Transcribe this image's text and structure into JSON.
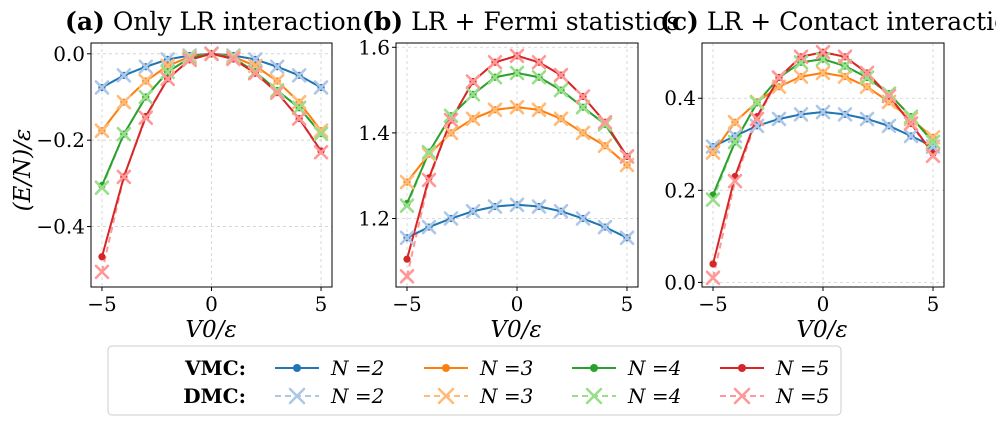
{
  "chart_data": [
    {
      "type": "line",
      "title_tag": "(a)",
      "title": "Only LR interaction",
      "xlabel": "V0/ε",
      "ylabel": "(E/N)/ε",
      "xlim": [
        -5.5,
        5.5
      ],
      "ylim": [
        -0.54,
        0.025
      ],
      "xticks": [
        -5,
        0,
        5
      ],
      "xtick_labels": [
        "−5",
        "0",
        "5"
      ],
      "yticks": [
        0.0,
        -0.2,
        -0.4
      ],
      "ytick_labels": [
        "0.0",
        "−0.2",
        "−0.4"
      ],
      "x": [
        -5,
        -4,
        -3,
        -2,
        -1,
        0,
        1,
        2,
        3,
        4,
        5
      ],
      "vmc": [
        {
          "name": "N =2",
          "values": [
            -0.078,
            -0.05,
            -0.03,
            -0.013,
            -0.004,
            0.0,
            -0.004,
            -0.013,
            -0.03,
            -0.05,
            -0.078
          ]
        },
        {
          "name": "N =3",
          "values": [
            -0.178,
            -0.112,
            -0.063,
            -0.028,
            -0.007,
            0.0,
            -0.007,
            -0.028,
            -0.063,
            -0.112,
            -0.178
          ]
        },
        {
          "name": "N =4",
          "values": [
            -0.305,
            -0.186,
            -0.1,
            -0.042,
            -0.01,
            0.0,
            -0.01,
            -0.042,
            -0.085,
            -0.125,
            -0.185
          ]
        },
        {
          "name": "N =5",
          "values": [
            -0.47,
            -0.285,
            -0.145,
            -0.058,
            -0.014,
            0.0,
            -0.012,
            -0.045,
            -0.09,
            -0.15,
            -0.225
          ]
        }
      ],
      "dmc": [
        {
          "name": "N =2",
          "values": [
            -0.078,
            -0.05,
            -0.03,
            -0.013,
            -0.004,
            0.0,
            -0.004,
            -0.013,
            -0.03,
            -0.05,
            -0.078
          ]
        },
        {
          "name": "N =3",
          "values": [
            -0.178,
            -0.112,
            -0.063,
            -0.028,
            -0.007,
            0.0,
            -0.007,
            -0.028,
            -0.063,
            -0.112,
            -0.178
          ]
        },
        {
          "name": "N =4",
          "values": [
            -0.31,
            -0.186,
            -0.1,
            -0.042,
            -0.01,
            0.0,
            -0.01,
            -0.042,
            -0.085,
            -0.125,
            -0.185
          ]
        },
        {
          "name": "N =5",
          "values": [
            -0.505,
            -0.285,
            -0.148,
            -0.058,
            -0.014,
            0.0,
            -0.012,
            -0.045,
            -0.09,
            -0.15,
            -0.228
          ]
        }
      ]
    },
    {
      "type": "line",
      "title_tag": "(b)",
      "title": "LR + Fermi statistics",
      "xlabel": "V0/ε",
      "ylabel": "",
      "xlim": [
        -5.5,
        5.5
      ],
      "ylim": [
        1.04,
        1.61
      ],
      "xticks": [
        -5,
        0,
        5
      ],
      "xtick_labels": [
        "−5",
        "0",
        "5"
      ],
      "yticks": [
        1.2,
        1.4,
        1.6
      ],
      "ytick_labels": [
        "1.2",
        "1.4",
        "1.6"
      ],
      "x": [
        -5,
        -4,
        -3,
        -2,
        -1,
        0,
        1,
        2,
        3,
        4,
        5
      ],
      "vmc": [
        {
          "name": "N =2",
          "values": [
            1.155,
            1.18,
            1.2,
            1.217,
            1.228,
            1.232,
            1.228,
            1.217,
            1.2,
            1.18,
            1.155
          ]
        },
        {
          "name": "N =3",
          "values": [
            1.285,
            1.35,
            1.4,
            1.433,
            1.454,
            1.46,
            1.454,
            1.433,
            1.4,
            1.37,
            1.325
          ]
        },
        {
          "name": "N =4",
          "values": [
            1.235,
            1.355,
            1.44,
            1.49,
            1.53,
            1.54,
            1.53,
            1.5,
            1.46,
            1.42,
            1.345
          ]
        },
        {
          "name": "N =5",
          "values": [
            1.105,
            1.295,
            1.43,
            1.52,
            1.565,
            1.58,
            1.565,
            1.535,
            1.485,
            1.425,
            1.345
          ]
        }
      ],
      "dmc": [
        {
          "name": "N =2",
          "values": [
            1.155,
            1.18,
            1.2,
            1.217,
            1.228,
            1.232,
            1.228,
            1.217,
            1.2,
            1.18,
            1.155
          ]
        },
        {
          "name": "N =3",
          "values": [
            1.285,
            1.35,
            1.4,
            1.433,
            1.454,
            1.46,
            1.454,
            1.433,
            1.4,
            1.37,
            1.325
          ]
        },
        {
          "name": "N =4",
          "values": [
            1.23,
            1.355,
            1.44,
            1.49,
            1.53,
            1.54,
            1.53,
            1.5,
            1.46,
            1.42,
            1.345
          ]
        },
        {
          "name": "N =5",
          "values": [
            1.065,
            1.29,
            1.43,
            1.52,
            1.565,
            1.58,
            1.565,
            1.535,
            1.485,
            1.425,
            1.345
          ]
        }
      ]
    },
    {
      "type": "line",
      "title_tag": "(c)",
      "title": "LR + Contact interaction",
      "xlabel": "V0/ε",
      "ylabel": "",
      "xlim": [
        -5.5,
        5.5
      ],
      "ylim": [
        -0.01,
        0.52
      ],
      "xticks": [
        -5,
        0,
        5
      ],
      "xtick_labels": [
        "−5",
        "0",
        "5"
      ],
      "yticks": [
        0.0,
        0.2,
        0.4
      ],
      "ytick_labels": [
        "0.0",
        "0.2",
        "0.4"
      ],
      "x": [
        -5,
        -4,
        -3,
        -2,
        -1,
        0,
        1,
        2,
        3,
        4,
        5
      ],
      "vmc": [
        {
          "name": "N =2",
          "values": [
            0.295,
            0.318,
            0.34,
            0.355,
            0.365,
            0.37,
            0.365,
            0.355,
            0.34,
            0.318,
            0.295
          ]
        },
        {
          "name": "N =3",
          "values": [
            0.282,
            0.348,
            0.392,
            0.425,
            0.447,
            0.455,
            0.447,
            0.425,
            0.392,
            0.355,
            0.315
          ]
        },
        {
          "name": "N =4",
          "values": [
            0.19,
            0.305,
            0.39,
            0.445,
            0.478,
            0.485,
            0.47,
            0.445,
            0.41,
            0.36,
            0.305
          ]
        },
        {
          "name": "N =5",
          "values": [
            0.04,
            0.23,
            0.36,
            0.445,
            0.49,
            0.5,
            0.49,
            0.455,
            0.405,
            0.345,
            0.28
          ]
        }
      ],
      "dmc": [
        {
          "name": "N =2",
          "values": [
            0.295,
            0.318,
            0.34,
            0.355,
            0.365,
            0.37,
            0.365,
            0.355,
            0.34,
            0.318,
            0.295
          ]
        },
        {
          "name": "N =3",
          "values": [
            0.282,
            0.348,
            0.392,
            0.425,
            0.447,
            0.455,
            0.447,
            0.425,
            0.392,
            0.355,
            0.315
          ]
        },
        {
          "name": "N =4",
          "values": [
            0.18,
            0.305,
            0.39,
            0.445,
            0.478,
            0.485,
            0.47,
            0.445,
            0.41,
            0.36,
            0.305
          ]
        },
        {
          "name": "N =5",
          "values": [
            0.01,
            0.22,
            0.355,
            0.445,
            0.49,
            0.5,
            0.49,
            0.455,
            0.405,
            0.345,
            0.275
          ]
        }
      ]
    }
  ],
  "colors": {
    "vmc": [
      "#1f77b4",
      "#ff7f0e",
      "#2ca02c",
      "#d62728"
    ],
    "dmc": [
      "#aec7e8",
      "#ffbb78",
      "#98df8a",
      "#ff9896"
    ]
  },
  "legend": {
    "vmc_label": "VMC:",
    "dmc_label": "DMC:",
    "entries": [
      "N =2",
      "N =3",
      "N =4",
      "N =5"
    ]
  }
}
